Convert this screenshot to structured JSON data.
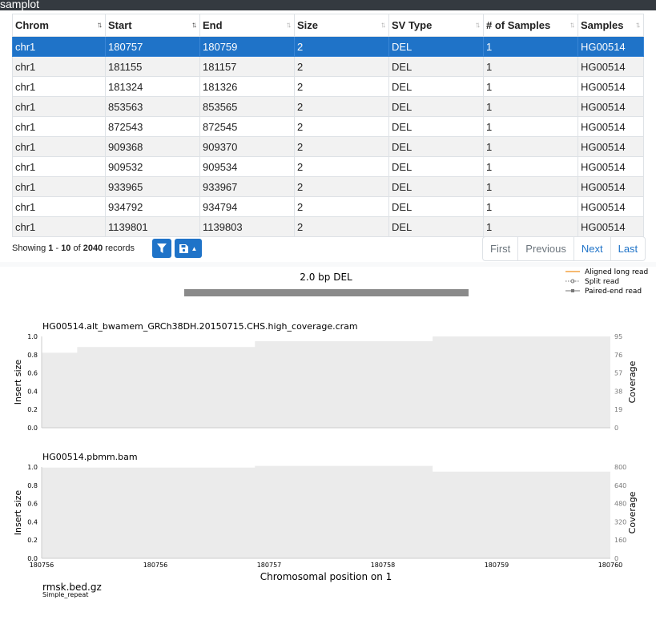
{
  "app_title": "samplot",
  "table": {
    "columns": [
      "Chrom",
      "Start",
      "End",
      "Size",
      "SV Type",
      "# of Samples",
      "Samples"
    ],
    "rows": [
      [
        "chr1",
        "180757",
        "180759",
        "2",
        "DEL",
        "1",
        "HG00514"
      ],
      [
        "chr1",
        "181155",
        "181157",
        "2",
        "DEL",
        "1",
        "HG00514"
      ],
      [
        "chr1",
        "181324",
        "181326",
        "2",
        "DEL",
        "1",
        "HG00514"
      ],
      [
        "chr1",
        "853563",
        "853565",
        "2",
        "DEL",
        "1",
        "HG00514"
      ],
      [
        "chr1",
        "872543",
        "872545",
        "2",
        "DEL",
        "1",
        "HG00514"
      ],
      [
        "chr1",
        "909368",
        "909370",
        "2",
        "DEL",
        "1",
        "HG00514"
      ],
      [
        "chr1",
        "909532",
        "909534",
        "2",
        "DEL",
        "1",
        "HG00514"
      ],
      [
        "chr1",
        "933965",
        "933967",
        "2",
        "DEL",
        "1",
        "HG00514"
      ],
      [
        "chr1",
        "934792",
        "934794",
        "2",
        "DEL",
        "1",
        "HG00514"
      ],
      [
        "chr1",
        "1139801",
        "1139803",
        "2",
        "DEL",
        "1",
        "HG00514"
      ]
    ],
    "selected_row": 0
  },
  "status": {
    "showing": "Showing",
    "from": "1",
    "dash": "-",
    "to": "10",
    "of": "of",
    "total": "2040",
    "records": "records"
  },
  "toolbar": {
    "filter_icon": "filter-icon",
    "save_icon": "floppy-disk-icon",
    "caret_icon": "caret-down-icon"
  },
  "pager": {
    "first": "First",
    "previous": "Previous",
    "next": "Next",
    "last": "Last"
  },
  "plot": {
    "sv_label": "2.0 bp DEL",
    "legend": [
      "Aligned long read",
      "Split read",
      "Paired-end read"
    ],
    "xlabel": "Chromosomal position on 1",
    "track_label": "rmsk.bed.gz",
    "track_sub": "Simple_repeat"
  },
  "chart_data": [
    {
      "type": "area",
      "title": "HG00514.alt_bwamem_GRCh38DH.20150715.CHS.high_coverage.cram",
      "ylabel": "Insert size",
      "y2label": "Coverage",
      "yticks": [
        "0.0",
        "0.2",
        "0.4",
        "0.6",
        "0.8",
        "1.0"
      ],
      "y2ticks": [
        "0",
        "19",
        "38",
        "57",
        "76",
        "95"
      ],
      "ylim": [
        0,
        1.0
      ],
      "y2lim": [
        0,
        95
      ],
      "x": [
        180756.0,
        180756.25,
        180757.5,
        180758.75,
        180760.0
      ],
      "coverage": [
        78,
        84,
        90,
        95,
        95
      ]
    },
    {
      "type": "area",
      "title": "HG00514.pbmm.bam",
      "ylabel": "Insert size",
      "y2label": "Coverage",
      "yticks": [
        "0.0",
        "0.2",
        "0.4",
        "0.6",
        "0.8",
        "1.0"
      ],
      "y2ticks": [
        "0",
        "160",
        "320",
        "480",
        "640",
        "800"
      ],
      "ylim": [
        0,
        1.0
      ],
      "y2lim": [
        0,
        800
      ],
      "x": [
        180756.0,
        180757.5,
        180758.75,
        180760.0
      ],
      "coverage": [
        795,
        810,
        760,
        760
      ],
      "xticks": [
        "180756",
        "180756",
        "180757",
        "180758",
        "180759",
        "180760"
      ]
    }
  ],
  "colors": {
    "accent": "#1f73c8",
    "long_read": "#f4a442",
    "coverage_fill": "#ebebeb",
    "sv_bar": "#8a8a8a"
  }
}
